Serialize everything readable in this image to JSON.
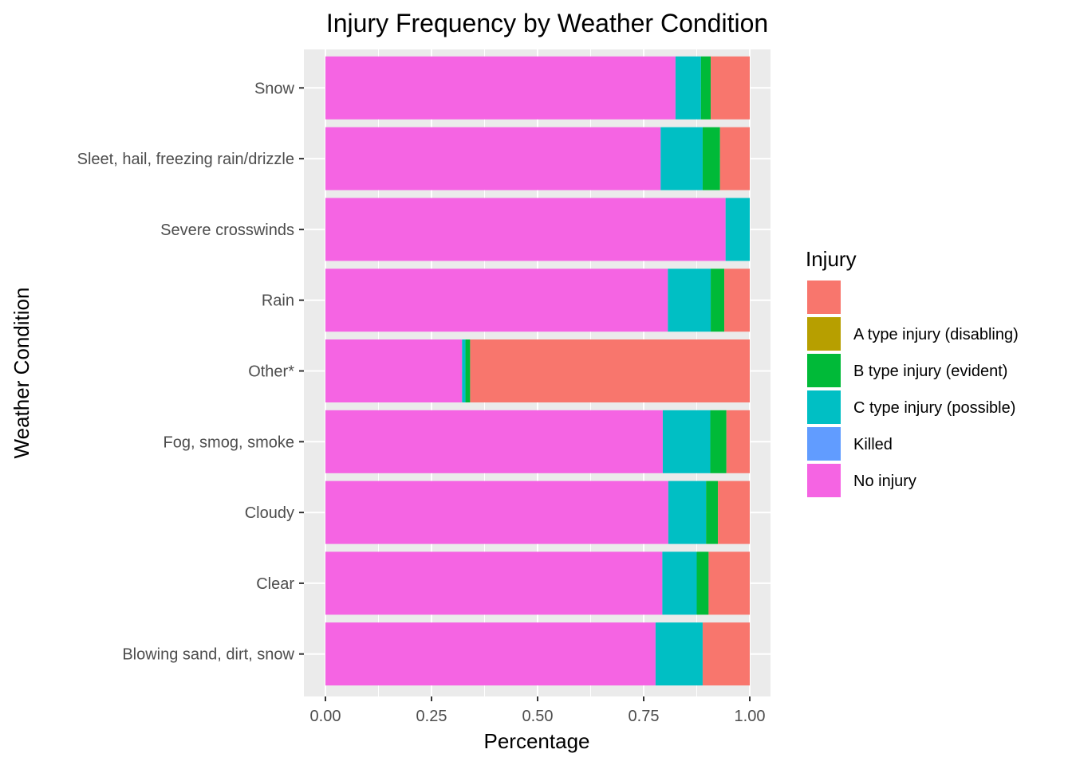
{
  "chart_data": {
    "type": "bar",
    "orientation": "horizontal",
    "stacked": "fill",
    "title": "Injury Frequency by Weather Condition",
    "xlabel": "Percentage",
    "ylabel": "Weather Condition",
    "xlim": [
      0,
      1
    ],
    "xticks": [
      "0.00",
      "0.25",
      "0.50",
      "0.75",
      "1.00"
    ],
    "xtick_values": [
      0,
      0.25,
      0.5,
      0.75,
      1.0
    ],
    "grid": true,
    "legend": {
      "title": "Injury",
      "placement": "right",
      "entries": [
        {
          "label": "",
          "color": "#F8766D"
        },
        {
          "label": "A type injury (disabling)",
          "color": "#B79F00"
        },
        {
          "label": "B type injury (evident)",
          "color": "#00BA38"
        },
        {
          "label": "C type injury (possible)",
          "color": "#00BFC4"
        },
        {
          "label": "Killed",
          "color": "#619CFF"
        },
        {
          "label": "No injury",
          "color": "#F564E3"
        }
      ]
    },
    "categories": [
      "Snow",
      "Sleet, hail, freezing rain/drizzle",
      "Severe crosswinds",
      "Rain",
      "Other*",
      "Fog, smog, smoke",
      "Cloudy",
      "Clear",
      "Blowing sand, dirt, snow"
    ],
    "stack_order_from_left": [
      "No injury",
      "Killed",
      "C type injury (possible)",
      "B type injury (evident)",
      "A type injury (disabling)",
      ""
    ],
    "series": [
      {
        "name": "No injury",
        "color": "#F564E3",
        "values": [
          0.825,
          0.79,
          0.943,
          0.807,
          0.322,
          0.795,
          0.808,
          0.794,
          0.778
        ]
      },
      {
        "name": "Killed",
        "color": "#619CFF",
        "values": [
          0.0,
          0.0,
          0.0,
          0.0,
          0.0,
          0.0,
          0.0,
          0.0,
          0.0
        ]
      },
      {
        "name": "C type injury (possible)",
        "color": "#00BFC4",
        "values": [
          0.06,
          0.099,
          0.057,
          0.101,
          0.008,
          0.112,
          0.089,
          0.081,
          0.111
        ]
      },
      {
        "name": "B type injury (evident)",
        "color": "#00BA38",
        "values": [
          0.023,
          0.041,
          0.0,
          0.032,
          0.011,
          0.038,
          0.028,
          0.028,
          0.0
        ]
      },
      {
        "name": "A type injury (disabling)",
        "color": "#B79F00",
        "values": [
          0.0,
          0.0,
          0.0,
          0.0,
          0.0,
          0.0,
          0.0,
          0.0,
          0.0
        ]
      },
      {
        "name": "",
        "color": "#F8766D",
        "values": [
          0.092,
          0.07,
          0.0,
          0.06,
          0.659,
          0.055,
          0.075,
          0.097,
          0.111
        ]
      }
    ]
  }
}
